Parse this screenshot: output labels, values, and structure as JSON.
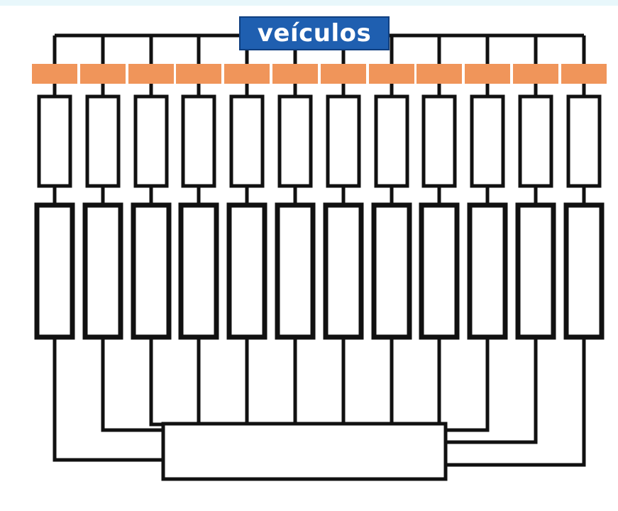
{
  "diagram": {
    "title": "veículos",
    "column_count": 12,
    "colors": {
      "title_background": "#1f5fb0",
      "title_text": "#ffffff",
      "tab": "#f0955a",
      "line": "#111111",
      "box_fill": "#ffffff",
      "top_strip": "#e8f7fb"
    }
  }
}
